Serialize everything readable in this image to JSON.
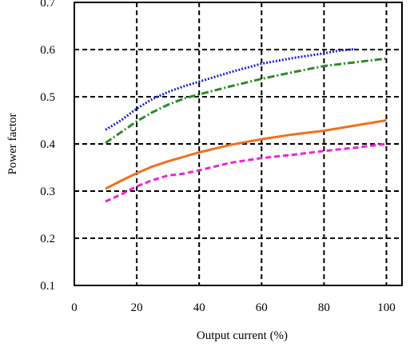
{
  "chart_data": {
    "type": "line",
    "title": "",
    "xlabel": "Output current (%)",
    "ylabel": "Power factor",
    "xlim": [
      0,
      105
    ],
    "ylim": [
      0.1,
      0.7
    ],
    "x_ticks": [
      0,
      20,
      40,
      60,
      80,
      100
    ],
    "x_tick_labels": [
      "0",
      "20",
      "40",
      "60",
      "80",
      "100"
    ],
    "y_ticks": [
      0.1,
      0.2,
      0.3,
      0.4,
      0.5,
      0.6,
      0.7
    ],
    "y_tick_labels": [
      "0.1",
      "0.2",
      "0.3",
      "0.4",
      "0.5",
      "0.6",
      "0.7"
    ],
    "grid": true,
    "grid_style": "dashed",
    "legend": "none",
    "series": [
      {
        "color": "#1f1fd6",
        "dash": "dotted",
        "x": [
          10,
          15,
          20,
          25,
          30,
          35,
          40,
          50,
          60,
          70,
          80,
          85,
          90
        ],
        "y": [
          0.43,
          0.45,
          0.475,
          0.495,
          0.51,
          0.522,
          0.532,
          0.552,
          0.57,
          0.582,
          0.592,
          0.598,
          0.601
        ]
      },
      {
        "color": "#2a8a2a",
        "dash": "dashdot",
        "x": [
          10,
          15,
          20,
          25,
          30,
          35,
          40,
          50,
          60,
          70,
          80,
          90,
          100
        ],
        "y": [
          0.402,
          0.425,
          0.448,
          0.467,
          0.483,
          0.496,
          0.505,
          0.522,
          0.538,
          0.552,
          0.565,
          0.573,
          0.581
        ]
      },
      {
        "color": "#f07020",
        "dash": "solid",
        "x": [
          10,
          15,
          20,
          25,
          30,
          40,
          50,
          60,
          70,
          80,
          90,
          100
        ],
        "y": [
          0.305,
          0.322,
          0.338,
          0.352,
          0.363,
          0.382,
          0.398,
          0.41,
          0.42,
          0.428,
          0.439,
          0.45
        ]
      },
      {
        "color": "#ee22dd",
        "dash": "dashed",
        "x": [
          10,
          15,
          20,
          25,
          30,
          35,
          40,
          50,
          60,
          70,
          80,
          90,
          100
        ],
        "y": [
          0.278,
          0.293,
          0.31,
          0.323,
          0.333,
          0.337,
          0.344,
          0.36,
          0.37,
          0.377,
          0.385,
          0.392,
          0.4
        ]
      }
    ]
  }
}
